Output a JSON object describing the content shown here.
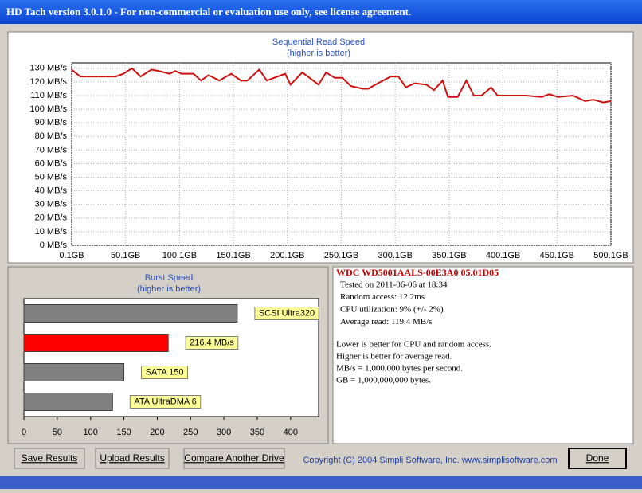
{
  "window": {
    "title": "HD Tach version 3.0.1.0  - For non-commercial or evaluation use only, see license agreement."
  },
  "chart_data": [
    {
      "type": "line",
      "title": "Sequential Read Speed",
      "subtitle": "(higher is better)",
      "color": "#d01010",
      "grid": true,
      "x": [
        0.1,
        8,
        41,
        48,
        56,
        64,
        74,
        81,
        91,
        96,
        102,
        113,
        120,
        127,
        137,
        148,
        157,
        163,
        174,
        181,
        198,
        203,
        214,
        229,
        236,
        244,
        251,
        259,
        270,
        275,
        284,
        296,
        303,
        310,
        318,
        329,
        336,
        344,
        349,
        358,
        366,
        373,
        380,
        389,
        395,
        403,
        421,
        436,
        443,
        451,
        465,
        476,
        484,
        493,
        500.1
      ],
      "values": [
        129,
        124,
        124,
        126,
        130,
        124,
        129,
        128,
        126,
        128,
        126,
        126,
        121,
        125,
        121,
        126,
        121,
        121,
        129,
        121,
        126,
        118,
        127,
        118,
        127,
        123,
        123,
        117,
        115,
        115,
        119,
        124,
        124,
        116,
        119,
        118,
        114,
        121,
        109,
        109,
        121,
        110,
        110,
        116,
        110,
        110,
        110,
        109,
        111,
        109,
        110,
        106,
        107,
        105,
        106
      ],
      "xlim": [
        0.1,
        500.1
      ],
      "xticks": [
        {
          "value": 0.1,
          "label": "0.1GB"
        },
        {
          "value": 50.1,
          "label": "50.1GB"
        },
        {
          "value": 100.1,
          "label": "100.1GB"
        },
        {
          "value": 150.1,
          "label": "150.1GB"
        },
        {
          "value": 200.1,
          "label": "200.1GB"
        },
        {
          "value": 250.1,
          "label": "250.1GB"
        },
        {
          "value": 300.1,
          "label": "300.1GB"
        },
        {
          "value": 350.1,
          "label": "350.1GB"
        },
        {
          "value": 400.1,
          "label": "400.1GB"
        },
        {
          "value": 450.1,
          "label": "450.1GB"
        },
        {
          "value": 500.1,
          "label": "500.1GB"
        }
      ],
      "ylim": [
        0,
        134
      ],
      "yticks": [
        {
          "value": 0,
          "label": "0 MB/s"
        },
        {
          "value": 10,
          "label": "10 MB/s"
        },
        {
          "value": 20,
          "label": "20 MB/s"
        },
        {
          "value": 30,
          "label": "30 MB/s"
        },
        {
          "value": 40,
          "label": "40 MB/s"
        },
        {
          "value": 50,
          "label": "50 MB/s"
        },
        {
          "value": 60,
          "label": "60 MB/s"
        },
        {
          "value": 70,
          "label": "70 MB/s"
        },
        {
          "value": 80,
          "label": "80 MB/s"
        },
        {
          "value": 90,
          "label": "90 MB/s"
        },
        {
          "value": 100,
          "label": "100 MB/s"
        },
        {
          "value": 110,
          "label": "110 MB/s"
        },
        {
          "value": 120,
          "label": "120 MB/s"
        },
        {
          "value": 130,
          "label": "130 MB/s"
        }
      ]
    },
    {
      "type": "hbar",
      "title": "Burst Speed",
      "subtitle": "(higher is better)",
      "categories": [
        "SCSI Ultra320",
        null,
        "SATA 150",
        "ATA UltraDMA 6"
      ],
      "values": [
        320,
        216.4,
        150,
        133
      ],
      "value_labels": [
        null,
        "216.4 MB/s",
        null,
        null
      ],
      "colors": [
        "#808080",
        "#ff0000",
        "#808080",
        "#808080"
      ],
      "xlim": [
        0,
        442
      ],
      "xticks": [
        0,
        50,
        100,
        150,
        200,
        250,
        300,
        350,
        400
      ]
    }
  ],
  "info": {
    "drive": "WDC WD5001AALS-00E3A0 05.01D05",
    "stats": [
      "Tested on 2011-06-06 at 18:34",
      "Random access: 12.2ms",
      "CPU utilization: 9% (+/- 2%)",
      "Average read: 119.4 MB/s"
    ],
    "notes": [
      "Lower is better for CPU and random access.",
      "Higher is better for average read.",
      "MB/s = 1,000,000 bytes per second.",
      "GB = 1,000,000,000 bytes."
    ]
  },
  "buttons": [
    "Save Results",
    "Upload Results",
    "Compare Another Drive",
    "Done"
  ],
  "copyright": "Copyright (C) 2004 Simpli Software, Inc. www.simplisoftware.com"
}
